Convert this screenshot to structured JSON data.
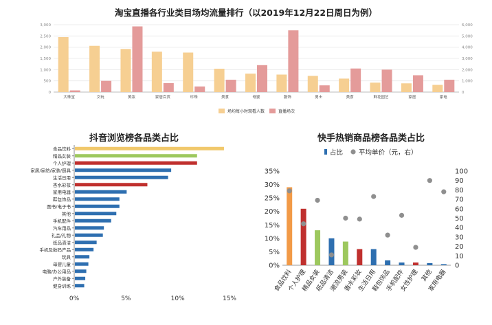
{
  "chart_data": [
    {
      "type": "bar",
      "title": "淘宝直播各行业类目场均流量排行（以2019年12月22日周日为例）",
      "categories": [
        "大珠宝",
        "文玩",
        "美妆",
        "家居百货",
        "珍珠",
        "美食",
        "母婴",
        "服饰",
        "男士",
        "美食",
        "鲜花园艺",
        "家居",
        "家电"
      ],
      "series": [
        {
          "name": "场均每小时观看人数",
          "axis": "left",
          "color": "#f6cf92",
          "values": [
            2450,
            2060,
            1920,
            1800,
            1760,
            1040,
            820,
            780,
            720,
            600,
            420,
            390,
            320
          ]
        },
        {
          "name": "直播场次",
          "axis": "right",
          "color": "#e49b9a",
          "values": [
            150,
            1000,
            5850,
            800,
            500,
            1100,
            2400,
            5500,
            600,
            2100,
            2000,
            1500,
            1100
          ]
        }
      ],
      "ylim_left": [
        0,
        3000
      ],
      "left_ticks": [
        "0",
        "500",
        "1,000",
        "1,500",
        "2,000",
        "2,500",
        "3,000"
      ],
      "ylim_right": [
        0,
        6000
      ],
      "right_ticks": [
        "0",
        "1,000",
        "2,000",
        "3,000",
        "4,000",
        "5,000",
        "6,000"
      ],
      "legend": "bottom"
    },
    {
      "type": "bar",
      "orientation": "horizontal",
      "title": "抖音浏览榜各品类占比",
      "categories": [
        "食品饮料",
        "精品女装",
        "个人护理",
        "家居/家纺/家装/厨具",
        "生活日用",
        "香水彩妆",
        "家用电器",
        "鞋包饰品",
        "图书/电子书",
        "其他",
        "手机配件",
        "汽车用品",
        "礼品/礼物",
        "纸品清洁",
        "手机及数码产品",
        "玩具",
        "母婴儿童",
        "电脑/办公用品",
        "户外装备",
        "健身训练"
      ],
      "values": [
        14.4,
        11.8,
        11.8,
        9.3,
        9.0,
        7.0,
        5.0,
        4.3,
        4.3,
        4.0,
        3.5,
        2.8,
        2.7,
        2.1,
        1.8,
        1.4,
        1.3,
        1.1,
        1.0,
        0.9
      ],
      "colors": [
        "#f1c86b",
        "#9dc85e",
        "#c0302e",
        "#2e6fb0",
        "#2e6fb0",
        "#c0302e",
        "#2e6fb0",
        "#2e6fb0",
        "#2e6fb0",
        "#2e6fb0",
        "#2e6fb0",
        "#2e6fb0",
        "#2e6fb0",
        "#2e6fb0",
        "#2e6fb0",
        "#2e6fb0",
        "#2e6fb0",
        "#2e6fb0",
        "#2e6fb0",
        "#2e6fb0"
      ],
      "xlim": [
        0,
        15
      ],
      "x_ticks": [
        "0%",
        "5%",
        "10%",
        "15%"
      ]
    },
    {
      "type": "bar",
      "title": "快手热销商品榜各品类占比",
      "categories": [
        "食品饮料",
        "个人护理",
        "精品女装",
        "纸品清洁",
        "潮流男装",
        "香水彩妆",
        "生活日用",
        "鞋包饰品",
        "手机配件",
        "女性护理",
        "其他",
        "家用电器"
      ],
      "series": [
        {
          "name": "占比",
          "type": "bar",
          "axis": "left",
          "values": [
            29,
            21,
            13,
            10,
            8.8,
            6,
            6,
            1.8,
            1.0,
            1.0,
            0.8,
            0.4
          ],
          "colors": [
            "#f29a47",
            "#c0302e",
            "#9dc85e",
            "#2e6fb0",
            "#9dc85e",
            "#c0302e",
            "#2e6fb0",
            "#2e6fb0",
            "#2e6fb0",
            "#c0302e",
            "#2e6fb0",
            "#2e6fb0"
          ]
        },
        {
          "name": "平均单价（元，右）",
          "type": "scatter",
          "axis": "right",
          "values": [
            79,
            44,
            69,
            11,
            50,
            49,
            73,
            32,
            53,
            19,
            90,
            78
          ],
          "color": "#8f8f8f"
        }
      ],
      "ylim_left": [
        0,
        35
      ],
      "left_ticks": [
        "0%",
        "5%",
        "10%",
        "15%",
        "20%",
        "25%",
        "30%",
        "35%"
      ],
      "ylim_right": [
        0,
        100
      ],
      "right_ticks": [
        "0",
        "10",
        "20",
        "30",
        "40",
        "50",
        "60",
        "70",
        "80",
        "90",
        "100"
      ],
      "legend": "top"
    }
  ]
}
